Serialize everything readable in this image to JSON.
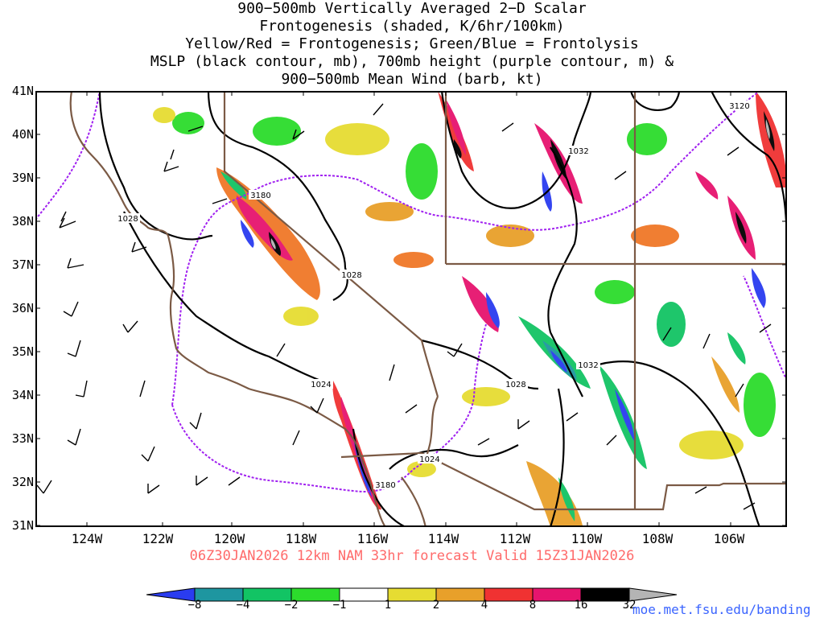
{
  "title_lines": [
    "900−500mb Vertically Averaged 2−D Scalar",
    "Frontogenesis (shaded, K/6hr/100km)",
    "Yellow/Red = Frontogenesis;  Green/Blue = Frontolysis",
    "MSLP (black contour, mb), 700mb height (purple contour, m) &",
    "900−500mb Mean Wind (barb, kt)"
  ],
  "lat_labels": [
    "41N",
    "40N",
    "39N",
    "38N",
    "37N",
    "36N",
    "35N",
    "34N",
    "33N",
    "32N",
    "31N"
  ],
  "lon_labels": [
    "124W",
    "122W",
    "120W",
    "118W",
    "116W",
    "114W",
    "112W",
    "110W",
    "108W",
    "106W"
  ],
  "valid_line": "06Z30JAN2026 12km NAM 33hr forecast Valid 15Z31JAN2026",
  "colorbar": {
    "labels": [
      "−8",
      "−4",
      "−2",
      "−1",
      "1",
      "2",
      "4",
      "8",
      "16",
      "32"
    ],
    "colors": [
      "#2a3cf0",
      "#1e96a0",
      "#12c464",
      "#2cdc2c",
      "#ffffff",
      "#e6dc32",
      "#e8a02a",
      "#f07828",
      "#f03232",
      "#e6146e",
      "#000000",
      "#b4b4b4"
    ]
  },
  "contour_labels": {
    "mslp": [
      "1032",
      "1028",
      "1024",
      "1032",
      "1028",
      "1024",
      "1028"
    ],
    "height": [
      "3180",
      "3180",
      "3120"
    ]
  },
  "footer_url": "moe.met.fsu.edu/banding"
}
